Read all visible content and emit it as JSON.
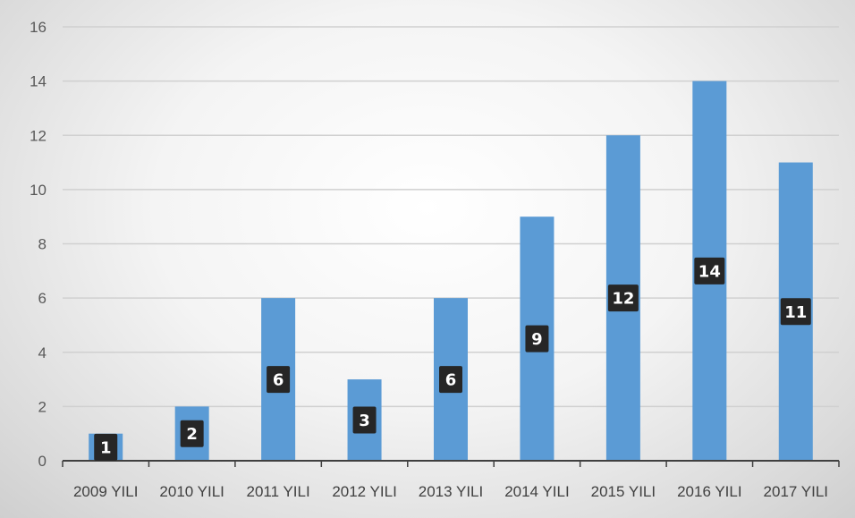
{
  "chart_data": {
    "type": "bar",
    "title": "",
    "xlabel": "",
    "ylabel": "",
    "categories": [
      "2009 YILI",
      "2010 YILI",
      "2011 YILI",
      "2012 YILI",
      "2013 YILI",
      "2014 YILI",
      "2015 YILI",
      "2016 YILI",
      "2017 YILI"
    ],
    "values": [
      1,
      2,
      6,
      3,
      6,
      9,
      12,
      14,
      11
    ],
    "ylim": [
      0,
      16
    ],
    "yticks": [
      0,
      2,
      4,
      6,
      8,
      10,
      12,
      14,
      16
    ],
    "grid": true,
    "legend": "none",
    "data_labels": true,
    "colors": {
      "bar": "#5b9bd5",
      "grid": "#d0d0d0",
      "label_bg": "#262626",
      "axis": "#404040"
    }
  }
}
